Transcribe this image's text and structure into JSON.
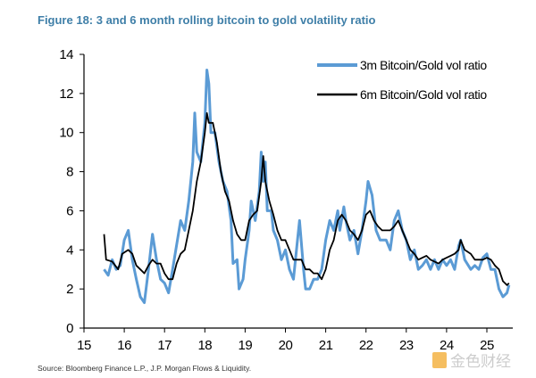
{
  "title": "Figure 18: 3 and 6 month rolling bitcoin to gold volatility ratio",
  "source": "Source: Bloomberg Finance L.P., J.P. Morgan Flows & Liquidity.",
  "watermark": "金色财经",
  "chart_data": {
    "type": "line",
    "title": "Figure 18: 3 and 6 month rolling bitcoin to gold volatility ratio",
    "xlabel": "",
    "ylabel": "",
    "xlim": [
      15,
      25.6
    ],
    "ylim": [
      0,
      14
    ],
    "xticks": [
      "15",
      "16",
      "17",
      "18",
      "19",
      "20",
      "21",
      "22",
      "23",
      "24",
      "25"
    ],
    "yticks": [
      "0",
      "2",
      "4",
      "6",
      "8",
      "10",
      "12",
      "14"
    ],
    "grid": false,
    "legend": "top-right",
    "series": [
      {
        "name": "3m Bitcoin/Gold vol ratio",
        "color": "#5b9bd5",
        "x": [
          15.5,
          15.6,
          15.7,
          15.8,
          15.9,
          16.0,
          16.1,
          16.2,
          16.3,
          16.4,
          16.5,
          16.6,
          16.7,
          16.8,
          16.9,
          17.0,
          17.1,
          17.2,
          17.4,
          17.5,
          17.6,
          17.7,
          17.75,
          17.8,
          17.9,
          18.0,
          18.05,
          18.1,
          18.15,
          18.25,
          18.35,
          18.45,
          18.55,
          18.65,
          18.7,
          18.8,
          18.85,
          18.95,
          19.0,
          19.1,
          19.15,
          19.25,
          19.35,
          19.4,
          19.45,
          19.5,
          19.55,
          19.65,
          19.7,
          19.8,
          19.9,
          20.0,
          20.1,
          20.2,
          20.3,
          20.35,
          20.45,
          20.5,
          20.6,
          20.7,
          20.8,
          20.9,
          21.0,
          21.1,
          21.2,
          21.3,
          21.35,
          21.45,
          21.5,
          21.6,
          21.7,
          21.8,
          21.9,
          22.0,
          22.05,
          22.15,
          22.25,
          22.35,
          22.5,
          22.6,
          22.7,
          22.8,
          22.9,
          23.0,
          23.1,
          23.2,
          23.3,
          23.4,
          23.5,
          23.6,
          23.7,
          23.8,
          23.9,
          24.0,
          24.1,
          24.2,
          24.3,
          24.35,
          24.45,
          24.6,
          24.7,
          24.8,
          24.9,
          25.0,
          25.1,
          25.2,
          25.3,
          25.4,
          25.5,
          25.55
        ],
        "y": [
          3.0,
          2.7,
          3.5,
          3.0,
          3.2,
          4.5,
          5.0,
          3.5,
          2.5,
          1.6,
          1.3,
          3.0,
          4.8,
          3.5,
          2.5,
          2.3,
          1.8,
          3.0,
          5.5,
          5.0,
          6.5,
          8.5,
          11.0,
          9.0,
          8.5,
          10.5,
          13.2,
          12.5,
          10.0,
          10.0,
          8.5,
          7.5,
          7.0,
          5.5,
          3.3,
          3.5,
          2.0,
          2.5,
          3.5,
          5.0,
          6.5,
          5.5,
          7.0,
          9.0,
          7.5,
          8.5,
          6.0,
          6.0,
          5.0,
          4.5,
          3.5,
          4.0,
          3.0,
          2.5,
          4.5,
          5.5,
          3.0,
          2.0,
          2.0,
          2.5,
          2.5,
          3.0,
          4.5,
          5.5,
          5.0,
          6.0,
          5.0,
          6.2,
          5.5,
          4.5,
          5.0,
          3.8,
          5.0,
          6.5,
          7.5,
          6.8,
          5.0,
          4.5,
          4.5,
          4.0,
          5.5,
          6.0,
          5.0,
          4.5,
          3.5,
          4.0,
          3.0,
          3.2,
          3.5,
          3.0,
          3.5,
          3.0,
          3.5,
          3.2,
          3.5,
          3.0,
          4.2,
          4.5,
          3.5,
          3.0,
          3.2,
          3.0,
          3.6,
          3.8,
          3.0,
          3.0,
          2.0,
          1.6,
          1.8,
          2.2
        ]
      },
      {
        "name": "6m Bitcoin/Gold vol ratio",
        "color": "#000000",
        "x": [
          15.5,
          15.55,
          15.7,
          15.85,
          15.95,
          16.1,
          16.2,
          16.3,
          16.4,
          16.5,
          16.6,
          16.7,
          16.8,
          16.9,
          17.0,
          17.1,
          17.2,
          17.3,
          17.4,
          17.5,
          17.6,
          17.7,
          17.8,
          17.9,
          18.0,
          18.05,
          18.1,
          18.2,
          18.3,
          18.4,
          18.5,
          18.6,
          18.7,
          18.8,
          18.9,
          19.0,
          19.1,
          19.2,
          19.3,
          19.4,
          19.45,
          19.5,
          19.6,
          19.7,
          19.8,
          19.9,
          20.0,
          20.1,
          20.2,
          20.3,
          20.4,
          20.5,
          20.6,
          20.7,
          20.8,
          20.9,
          21.0,
          21.1,
          21.2,
          21.3,
          21.4,
          21.5,
          21.6,
          21.7,
          21.8,
          21.9,
          22.0,
          22.1,
          22.2,
          22.3,
          22.4,
          22.5,
          22.6,
          22.7,
          22.8,
          22.9,
          23.0,
          23.1,
          23.2,
          23.3,
          23.4,
          23.5,
          23.6,
          23.7,
          23.8,
          23.9,
          24.0,
          24.1,
          24.2,
          24.3,
          24.35,
          24.45,
          24.6,
          24.7,
          24.8,
          24.9,
          25.0,
          25.1,
          25.2,
          25.3,
          25.4,
          25.5,
          25.55
        ],
        "y": [
          4.8,
          3.5,
          3.4,
          3.0,
          3.8,
          4.0,
          3.8,
          3.2,
          3.0,
          2.8,
          3.2,
          3.5,
          3.3,
          3.3,
          2.8,
          2.5,
          2.5,
          3.3,
          3.8,
          4.0,
          5.0,
          6.0,
          7.5,
          8.5,
          10.0,
          11.0,
          10.5,
          10.5,
          9.5,
          8.0,
          7.0,
          6.5,
          5.5,
          4.8,
          4.5,
          4.5,
          5.5,
          5.8,
          6.0,
          7.5,
          8.8,
          7.5,
          6.5,
          5.8,
          5.0,
          4.5,
          4.5,
          4.0,
          3.5,
          3.5,
          3.5,
          3.0,
          3.0,
          2.8,
          2.8,
          2.5,
          3.0,
          4.0,
          4.5,
          5.5,
          5.8,
          5.5,
          5.0,
          4.8,
          4.5,
          5.0,
          5.8,
          6.0,
          5.5,
          5.2,
          5.0,
          5.0,
          5.0,
          5.2,
          5.5,
          5.0,
          4.5,
          4.0,
          3.8,
          3.5,
          3.6,
          3.7,
          3.5,
          3.4,
          3.3,
          3.5,
          3.6,
          3.7,
          3.8,
          4.0,
          4.5,
          4.0,
          3.8,
          3.5,
          3.5,
          3.5,
          3.6,
          3.5,
          3.2,
          3.0,
          2.4,
          2.2,
          2.3
        ]
      }
    ]
  }
}
